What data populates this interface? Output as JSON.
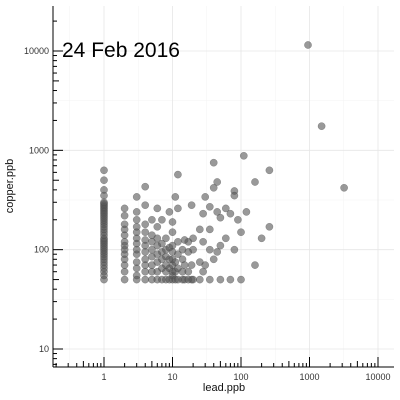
{
  "chart_data": {
    "type": "scatter",
    "title": "24 Feb 2016",
    "xlabel": "lead.ppb",
    "ylabel": "copper.ppb",
    "x_scale": "log10",
    "y_scale": "log10",
    "xlim": [
      0.2,
      17000
    ],
    "ylim": [
      7,
      30000
    ],
    "x_ticks": [
      1,
      10,
      100,
      1000,
      10000
    ],
    "x_tick_labels": [
      "1",
      "10",
      "100",
      "1000",
      "10000"
    ],
    "y_ticks": [
      10,
      100,
      1000,
      10000
    ],
    "y_tick_labels": [
      "10",
      "100",
      "1000",
      "10000"
    ],
    "grid": true,
    "point_color": "#555555",
    "points": [
      [
        1,
        50
      ],
      [
        1,
        55
      ],
      [
        1,
        60
      ],
      [
        1,
        65
      ],
      [
        1,
        70
      ],
      [
        1,
        75
      ],
      [
        1,
        80
      ],
      [
        1,
        85
      ],
      [
        1,
        90
      ],
      [
        1,
        95
      ],
      [
        1,
        100
      ],
      [
        1,
        105
      ],
      [
        1,
        110
      ],
      [
        1,
        115
      ],
      [
        1,
        120
      ],
      [
        1,
        125
      ],
      [
        1,
        130
      ],
      [
        1,
        140
      ],
      [
        1,
        150
      ],
      [
        1,
        160
      ],
      [
        1,
        170
      ],
      [
        1,
        180
      ],
      [
        1,
        190
      ],
      [
        1,
        200
      ],
      [
        1,
        210
      ],
      [
        1,
        220
      ],
      [
        1,
        230
      ],
      [
        1,
        240
      ],
      [
        1,
        250
      ],
      [
        1,
        260
      ],
      [
        1,
        270
      ],
      [
        1,
        280
      ],
      [
        1,
        290
      ],
      [
        1,
        300
      ],
      [
        1,
        350
      ],
      [
        1,
        400
      ],
      [
        1,
        500
      ],
      [
        1,
        630
      ],
      [
        2,
        50
      ],
      [
        2,
        60
      ],
      [
        2,
        70
      ],
      [
        2,
        80
      ],
      [
        2,
        90
      ],
      [
        2,
        100
      ],
      [
        2,
        110
      ],
      [
        2,
        120
      ],
      [
        2,
        140
      ],
      [
        2,
        160
      ],
      [
        2,
        180
      ],
      [
        2,
        220
      ],
      [
        2,
        260
      ],
      [
        3,
        50
      ],
      [
        3,
        55
      ],
      [
        3,
        65
      ],
      [
        3,
        75
      ],
      [
        3,
        90
      ],
      [
        3,
        100
      ],
      [
        3,
        115
      ],
      [
        3,
        130
      ],
      [
        3,
        150
      ],
      [
        3,
        170
      ],
      [
        3,
        200
      ],
      [
        3,
        240
      ],
      [
        3,
        340
      ],
      [
        4,
        50
      ],
      [
        4,
        60
      ],
      [
        4,
        70
      ],
      [
        4,
        80
      ],
      [
        4,
        95
      ],
      [
        4,
        110
      ],
      [
        4,
        125
      ],
      [
        4,
        150
      ],
      [
        4,
        180
      ],
      [
        4,
        280
      ],
      [
        4,
        430
      ],
      [
        5,
        50
      ],
      [
        5,
        60
      ],
      [
        5,
        70
      ],
      [
        5,
        85
      ],
      [
        5,
        100
      ],
      [
        5,
        120
      ],
      [
        5,
        140
      ],
      [
        5,
        200
      ],
      [
        6,
        50
      ],
      [
        6,
        60
      ],
      [
        6,
        75
      ],
      [
        6,
        90
      ],
      [
        6,
        110
      ],
      [
        6,
        130
      ],
      [
        6,
        170
      ],
      [
        6,
        260
      ],
      [
        7,
        50
      ],
      [
        7,
        65
      ],
      [
        7,
        80
      ],
      [
        7,
        95
      ],
      [
        7,
        115
      ],
      [
        7,
        200
      ],
      [
        8,
        50
      ],
      [
        8,
        60
      ],
      [
        8,
        70
      ],
      [
        8,
        85
      ],
      [
        8,
        100
      ],
      [
        8,
        130
      ],
      [
        9,
        50
      ],
      [
        9,
        65
      ],
      [
        9,
        80
      ],
      [
        9,
        105
      ],
      [
        9,
        240
      ],
      [
        10,
        50
      ],
      [
        10,
        55
      ],
      [
        10,
        60
      ],
      [
        10,
        70
      ],
      [
        10,
        80
      ],
      [
        10,
        95
      ],
      [
        10,
        110
      ],
      [
        10,
        150
      ],
      [
        10,
        190
      ],
      [
        11,
        50
      ],
      [
        11,
        60
      ],
      [
        11,
        75
      ],
      [
        11,
        340
      ],
      [
        12,
        50
      ],
      [
        12,
        65
      ],
      [
        12,
        90
      ],
      [
        12,
        120
      ],
      [
        12,
        260
      ],
      [
        12,
        570
      ],
      [
        14,
        50
      ],
      [
        14,
        60
      ],
      [
        14,
        80
      ],
      [
        14,
        100
      ],
      [
        15,
        50
      ],
      [
        15,
        70
      ],
      [
        15,
        125
      ],
      [
        17,
        50
      ],
      [
        17,
        60
      ],
      [
        17,
        95
      ],
      [
        17,
        120
      ],
      [
        19,
        50
      ],
      [
        19,
        70
      ],
      [
        19,
        280
      ],
      [
        20,
        50
      ],
      [
        20,
        100
      ],
      [
        20,
        130
      ],
      [
        25,
        50
      ],
      [
        25,
        75
      ],
      [
        25,
        160
      ],
      [
        28,
        60
      ],
      [
        28,
        120
      ],
      [
        28,
        230
      ],
      [
        30,
        70
      ],
      [
        30,
        340
      ],
      [
        35,
        50
      ],
      [
        35,
        100
      ],
      [
        35,
        160
      ],
      [
        35,
        270
      ],
      [
        40,
        80
      ],
      [
        40,
        420
      ],
      [
        40,
        750
      ],
      [
        45,
        95
      ],
      [
        45,
        240
      ],
      [
        45,
        480
      ],
      [
        50,
        50
      ],
      [
        50,
        110
      ],
      [
        50,
        210
      ],
      [
        60,
        130
      ],
      [
        60,
        260
      ],
      [
        70,
        50
      ],
      [
        70,
        230
      ],
      [
        80,
        100
      ],
      [
        80,
        390
      ],
      [
        80,
        350
      ],
      [
        90,
        200
      ],
      [
        100,
        50
      ],
      [
        100,
        150
      ],
      [
        110,
        880
      ],
      [
        120,
        240
      ],
      [
        160,
        70
      ],
      [
        160,
        480
      ],
      [
        200,
        130
      ],
      [
        260,
        170
      ],
      [
        260,
        630
      ],
      [
        950,
        11500
      ],
      [
        1500,
        1750
      ],
      [
        3200,
        420
      ]
    ]
  }
}
